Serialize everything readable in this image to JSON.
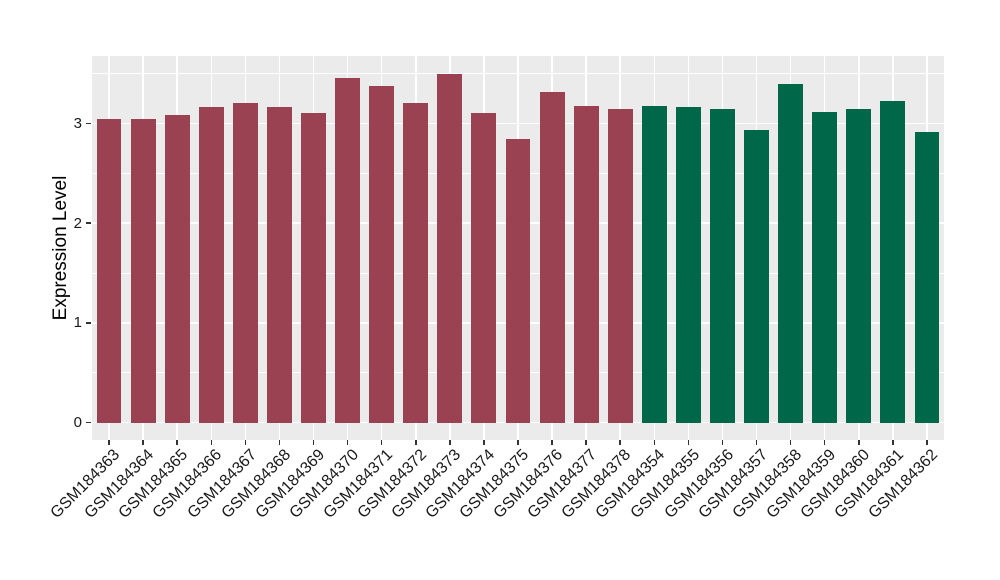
{
  "chart_data": {
    "type": "bar",
    "title": "",
    "xlabel": "",
    "ylabel": "Expression Level",
    "ylim": [
      -0.175,
      3.675
    ],
    "yticks": [
      0,
      1,
      2,
      3
    ],
    "yticks_minor": [
      0.5,
      1.5,
      2.5,
      3.5
    ],
    "grid": "white major/minor horizontal gridlines and vertical gridline at each category center on gray panel",
    "legend_position": "none",
    "panel_background": "#EBEBEB",
    "grid_color": "#FFFFFF",
    "axis_text_color": "#1A1A1A",
    "tick_mark_color": "#333333",
    "categories": [
      "GSM184363",
      "GSM184364",
      "GSM184365",
      "GSM184366",
      "GSM184367",
      "GSM184368",
      "GSM184369",
      "GSM184370",
      "GSM184371",
      "GSM184372",
      "GSM184373",
      "GSM184374",
      "GSM184375",
      "GSM184376",
      "GSM184377",
      "GSM184378",
      "GSM184354",
      "GSM184355",
      "GSM184356",
      "GSM184357",
      "GSM184358",
      "GSM184359",
      "GSM184360",
      "GSM184361",
      "GSM184362"
    ],
    "values": [
      3.04,
      3.04,
      3.08,
      3.16,
      3.2,
      3.16,
      3.1,
      3.45,
      3.37,
      3.2,
      3.49,
      3.1,
      2.84,
      3.31,
      3.17,
      3.14,
      3.17,
      3.16,
      3.14,
      2.93,
      3.39,
      3.11,
      3.14,
      3.22,
      2.91
    ],
    "bar_groups": [
      "maroon",
      "maroon",
      "maroon",
      "maroon",
      "maroon",
      "maroon",
      "maroon",
      "maroon",
      "maroon",
      "maroon",
      "maroon",
      "maroon",
      "maroon",
      "maroon",
      "maroon",
      "maroon",
      "green",
      "green",
      "green",
      "green",
      "green",
      "green",
      "green",
      "green",
      "green"
    ],
    "group_colors": {
      "maroon": "#9A4252",
      "green": "#006848"
    }
  }
}
